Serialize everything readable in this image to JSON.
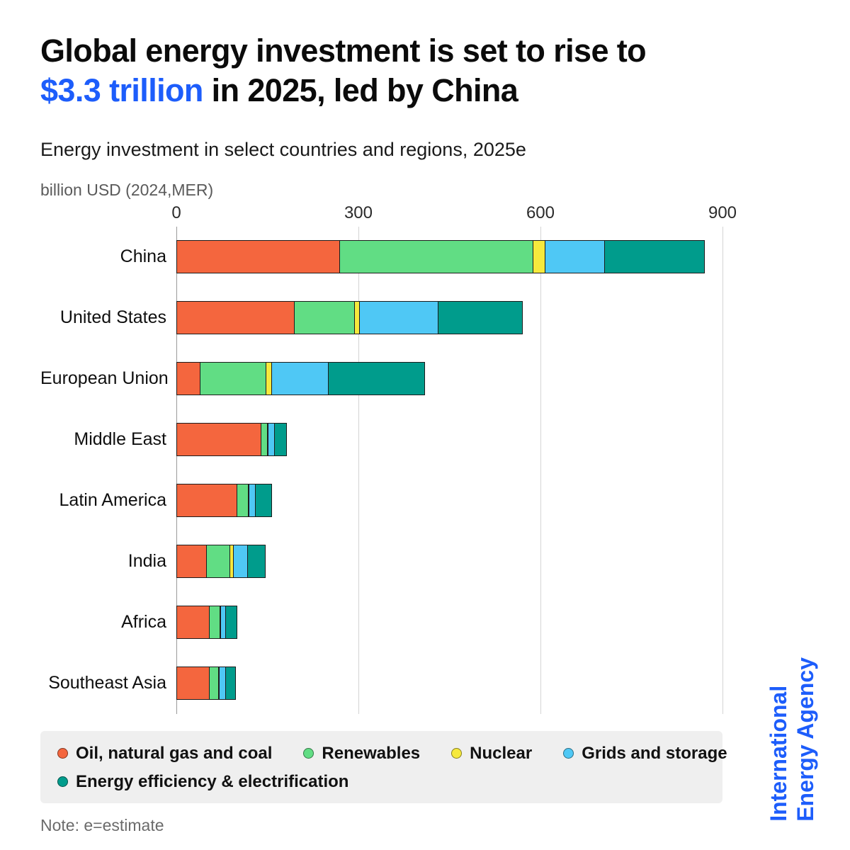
{
  "title": {
    "part1": "Global energy investment is set to rise to",
    "highlight": "$3.3 trillion",
    "part2": " in 2025, led by China",
    "highlight_color": "#1D5DFB"
  },
  "subtitle": "Energy investment in select countries and regions, 2025e",
  "axis_unit_label": "billion USD (2024,MER)",
  "chart_data": {
    "type": "bar",
    "orientation": "horizontal",
    "stacked": true,
    "title": "Energy investment in select countries and regions, 2025e",
    "xlabel": "billion USD (2024, MER)",
    "xlim": [
      0,
      900
    ],
    "x_ticks": [
      0,
      300,
      600,
      900
    ],
    "grid": "vertical-lines",
    "legend_position": "bottom",
    "categories": [
      "China",
      "United States",
      "European Union",
      "Middle East",
      "Latin America",
      "India",
      "Africa",
      "Southeast Asia"
    ],
    "series": [
      {
        "name": "Oil, natural gas and coal",
        "color": "#F4663E",
        "values": [
          270,
          195,
          40,
          140,
          100,
          50,
          55,
          55
        ]
      },
      {
        "name": "Renewables",
        "color": "#61DD84",
        "values": [
          320,
          100,
          110,
          12,
          20,
          40,
          18,
          16
        ]
      },
      {
        "name": "Nuclear",
        "color": "#F6E93D",
        "values": [
          20,
          10,
          10,
          1,
          2,
          7,
          1,
          1
        ]
      },
      {
        "name": "Grids and storage",
        "color": "#4FC8F5",
        "values": [
          100,
          130,
          95,
          12,
          12,
          25,
          10,
          12
        ]
      },
      {
        "name": "Energy efficiency & electrification",
        "color": "#009C8C",
        "values": [
          165,
          140,
          160,
          21,
          28,
          30,
          20,
          18
        ]
      }
    ]
  },
  "note": "Note: e=estimate",
  "branding": {
    "line1": "International",
    "line2": "Energy Agency",
    "color": "#1D5DFB"
  }
}
